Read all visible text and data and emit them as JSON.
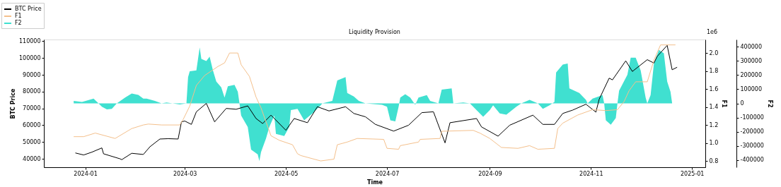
{
  "chart_data": {
    "type": "line",
    "title": "Liquidity Provision",
    "xlabel": "Time",
    "ylabel": "BTC Price",
    "y2label": "F1",
    "y3label": "F2",
    "annotations": [
      "1e6"
    ],
    "legend": "top left",
    "line_style": "solid",
    "xlim": [
      "2023-12-07",
      "2025-01-09"
    ],
    "xticks": [
      "2024-01",
      "2024-03",
      "2024-05",
      "2024-07",
      "2024-09",
      "2024-11",
      "2025-01"
    ],
    "ylim": [
      35000,
      111000
    ],
    "yticks": [
      40000,
      50000,
      60000,
      70000,
      80000,
      90000,
      100000,
      110000
    ],
    "y2lim": [
      0.73,
      2.15
    ],
    "y2ticks": [
      0.8,
      {
        "value": 1,
        "label": "1.0"
      },
      1.2,
      1.4,
      1.6,
      1.8,
      {
        "value": 2,
        "label": "2.0"
      }
    ],
    "y3lim": [
      -450000,
      450000
    ],
    "y3ticks": [
      -400000,
      -300000,
      -200000,
      -100000,
      0,
      100000,
      200000,
      300000,
      400000
    ],
    "series": [
      {
        "name": "BTC Price",
        "axis": "y",
        "color": "#000000",
        "x": [
          "2023-12-26",
          "2023-12-31",
          "2024-01-05",
          "2024-01-11",
          "2024-01-12",
          "2024-01-22",
          "2024-01-23",
          "2024-01-29",
          "2024-02-05",
          "2024-02-09",
          "2024-02-15",
          "2024-02-20",
          "2024-02-26",
          "2024-02-28",
          "2024-03-01",
          "2024-03-05",
          "2024-03-08",
          "2024-03-14",
          "2024-03-19",
          "2024-03-26",
          "2024-04-01",
          "2024-04-08",
          "2024-04-13",
          "2024-04-17",
          "2024-04-22",
          "2024-05-01",
          "2024-05-06",
          "2024-05-14",
          "2024-05-20",
          "2024-05-27",
          "2024-06-06",
          "2024-06-11",
          "2024-06-18",
          "2024-06-24",
          "2024-07-05",
          "2024-07-14",
          "2024-07-22",
          "2024-07-29",
          "2024-08-05",
          "2024-08-08",
          "2024-08-24",
          "2024-08-27",
          "2024-09-06",
          "2024-09-13",
          "2024-09-27",
          "2024-10-03",
          "2024-10-10",
          "2024-10-15",
          "2024-10-21",
          "2024-10-29",
          "2024-11-04",
          "2024-11-06",
          "2024-11-12",
          "2024-11-14",
          "2024-11-22",
          "2024-11-26",
          "2024-12-05",
          "2024-12-09",
          "2024-12-11",
          "2024-12-17",
          "2024-12-20",
          "2024-12-23"
        ],
        "values": [
          43500,
          42300,
          44000,
          46500,
          43000,
          40000,
          39500,
          43300,
          42600,
          47200,
          51800,
          52000,
          51800,
          62000,
          62500,
          60500,
          68000,
          73000,
          62000,
          70000,
          69500,
          71500,
          64000,
          61000,
          66000,
          57000,
          64000,
          61500,
          71000,
          68500,
          71000,
          67000,
          65000,
          60500,
          56500,
          60000,
          67500,
          68000,
          49500,
          61500,
          64000,
          59000,
          53500,
          60000,
          66000,
          60500,
          60500,
          67000,
          69000,
          72500,
          67800,
          75500,
          88000,
          87000,
          98300,
          92000,
          99000,
          97000,
          101000,
          107500,
          93000,
          94500
        ]
      },
      {
        "name": "F1",
        "axis": "y2",
        "color": "#f4c08c",
        "x": [
          "2023-12-25",
          "2023-12-31",
          "2024-01-07",
          "2024-01-19",
          "2024-01-29",
          "2024-02-05",
          "2024-02-08",
          "2024-02-16",
          "2024-02-27",
          "2024-02-29",
          "2024-03-04",
          "2024-03-08",
          "2024-03-13",
          "2024-03-21",
          "2024-03-25",
          "2024-03-28",
          "2024-04-02",
          "2024-04-04",
          "2024-04-09",
          "2024-04-13",
          "2024-04-16",
          "2024-04-22",
          "2024-04-27",
          "2024-05-05",
          "2024-05-08",
          "2024-05-10",
          "2024-05-22",
          "2024-05-30",
          "2024-06-01",
          "2024-06-07",
          "2024-06-13",
          "2024-06-29",
          "2024-07-01",
          "2024-07-08",
          "2024-07-09",
          "2024-07-20",
          "2024-07-21",
          "2024-08-02",
          "2024-08-03",
          "2024-08-22",
          "2024-08-26",
          "2024-09-01",
          "2024-09-08",
          "2024-09-18",
          "2024-09-25",
          "2024-09-30",
          "2024-10-10",
          "2024-10-12",
          "2024-10-15",
          "2024-10-24",
          "2024-11-02",
          "2024-11-10",
          "2024-11-17",
          "2024-11-21",
          "2024-11-24",
          "2024-11-28",
          "2024-12-05",
          "2024-12-09",
          "2024-12-13",
          "2024-12-22"
        ],
        "values": [
          1.07,
          1.07,
          1.11,
          1.05,
          1.16,
          1.2,
          1.21,
          1.2,
          1.2,
          1.26,
          1.41,
          1.64,
          1.75,
          1.85,
          1.89,
          2.0,
          2.0,
          1.87,
          1.74,
          1.51,
          1.39,
          1.08,
          1.03,
          0.98,
          0.88,
          0.86,
          0.8,
          0.82,
          0.98,
          1.01,
          1.05,
          1.04,
          0.94,
          0.93,
          0.97,
          1.01,
          1.04,
          1.05,
          1.13,
          1.14,
          1.11,
          1.05,
          0.95,
          0.94,
          0.97,
          0.93,
          0.94,
          1.16,
          1.22,
          1.31,
          1.37,
          1.36,
          1.37,
          1.46,
          1.58,
          1.68,
          1.68,
          1.92,
          2.09,
          2.09
        ]
      },
      {
        "name": "F2",
        "type": "area",
        "axis": "y3",
        "color": "#40e0d0",
        "x": [
          "2023-12-25",
          "2023-12-30",
          "2024-01-06",
          "2024-01-09",
          "2024-01-11",
          "2024-01-14",
          "2024-01-17",
          "2024-01-20",
          "2024-01-25",
          "2024-01-29",
          "2024-02-02",
          "2024-02-05",
          "2024-02-07",
          "2024-02-12",
          "2024-02-16",
          "2024-02-19",
          "2024-02-27",
          "2024-03-02",
          "2024-03-03",
          "2024-03-04",
          "2024-03-08",
          "2024-03-10",
          "2024-03-11",
          "2024-03-14",
          "2024-03-16",
          "2024-03-18",
          "2024-03-20",
          "2024-03-23",
          "2024-03-25",
          "2024-03-27",
          "2024-03-31",
          "2024-04-02",
          "2024-04-03",
          "2024-04-04",
          "2024-04-08",
          "2024-04-10",
          "2024-04-14",
          "2024-04-15",
          "2024-04-16",
          "2024-04-19",
          "2024-04-21",
          "2024-04-24",
          "2024-04-25",
          "2024-04-30",
          "2024-05-03",
          "2024-05-04",
          "2024-05-08",
          "2024-05-12",
          "2024-05-17",
          "2024-05-22",
          "2024-05-23",
          "2024-05-29",
          "2024-06-01",
          "2024-06-06",
          "2024-06-07",
          "2024-06-11",
          "2024-06-14",
          "2024-06-18",
          "2024-06-28",
          "2024-07-01",
          "2024-07-03",
          "2024-07-06",
          "2024-07-08",
          "2024-07-09",
          "2024-07-12",
          "2024-07-15",
          "2024-07-18",
          "2024-07-20",
          "2024-07-25",
          "2024-07-27",
          "2024-08-01",
          "2024-08-03",
          "2024-08-09",
          "2024-08-10",
          "2024-08-16",
          "2024-08-20",
          "2024-08-26",
          "2024-08-28",
          "2024-09-01",
          "2024-09-03",
          "2024-09-07",
          "2024-09-11",
          "2024-09-17",
          "2024-09-20",
          "2024-09-25",
          "2024-09-30",
          "2024-10-03",
          "2024-10-07",
          "2024-10-10",
          "2024-10-11",
          "2024-10-15",
          "2024-10-18",
          "2024-10-19",
          "2024-10-25",
          "2024-10-29",
          "2024-10-30",
          "2024-11-02",
          "2024-11-08",
          "2024-11-09",
          "2024-11-10",
          "2024-11-13",
          "2024-11-16",
          "2024-11-17",
          "2024-11-18",
          "2024-11-23",
          "2024-11-25",
          "2024-11-28",
          "2024-12-01",
          "2024-12-04",
          "2024-12-05",
          "2024-12-07",
          "2024-12-09",
          "2024-12-12",
          "2024-12-15",
          "2024-12-17",
          "2024-12-19",
          "2024-12-20"
        ],
        "values": [
          17000,
          10000,
          34000,
          0,
          -23000,
          -42000,
          -38000,
          0,
          41000,
          70000,
          60000,
          34000,
          34000,
          17000,
          0,
          6000,
          -7000,
          0,
          185000,
          226000,
          233000,
          394000,
          313000,
          298000,
          329000,
          233000,
          154000,
          113000,
          41000,
          121000,
          130000,
          82000,
          0,
          -86000,
          -167000,
          -326000,
          -359000,
          -406000,
          -343000,
          -247000,
          -167000,
          -86000,
          -215000,
          -230000,
          -167000,
          -47000,
          -38000,
          -119000,
          -71000,
          -14000,
          0,
          17000,
          161000,
          185000,
          73000,
          49000,
          17000,
          0,
          -10000,
          -23000,
          -119000,
          -127000,
          -23000,
          41000,
          65000,
          41000,
          -10000,
          41000,
          58000,
          17000,
          0,
          97000,
          106000,
          0,
          6000,
          0,
          -71000,
          -95000,
          -47000,
          -14000,
          -71000,
          -79000,
          -23000,
          0,
          25000,
          0,
          -38000,
          -14000,
          10000,
          217000,
          274000,
          281000,
          106000,
          73000,
          25000,
          0,
          34000,
          58000,
          0,
          -119000,
          -151000,
          -103000,
          0,
          89000,
          202000,
          322000,
          322000,
          233000,
          41000,
          0,
          58000,
          281000,
          377000,
          353000,
          154000,
          82000,
          0
        ]
      }
    ]
  }
}
